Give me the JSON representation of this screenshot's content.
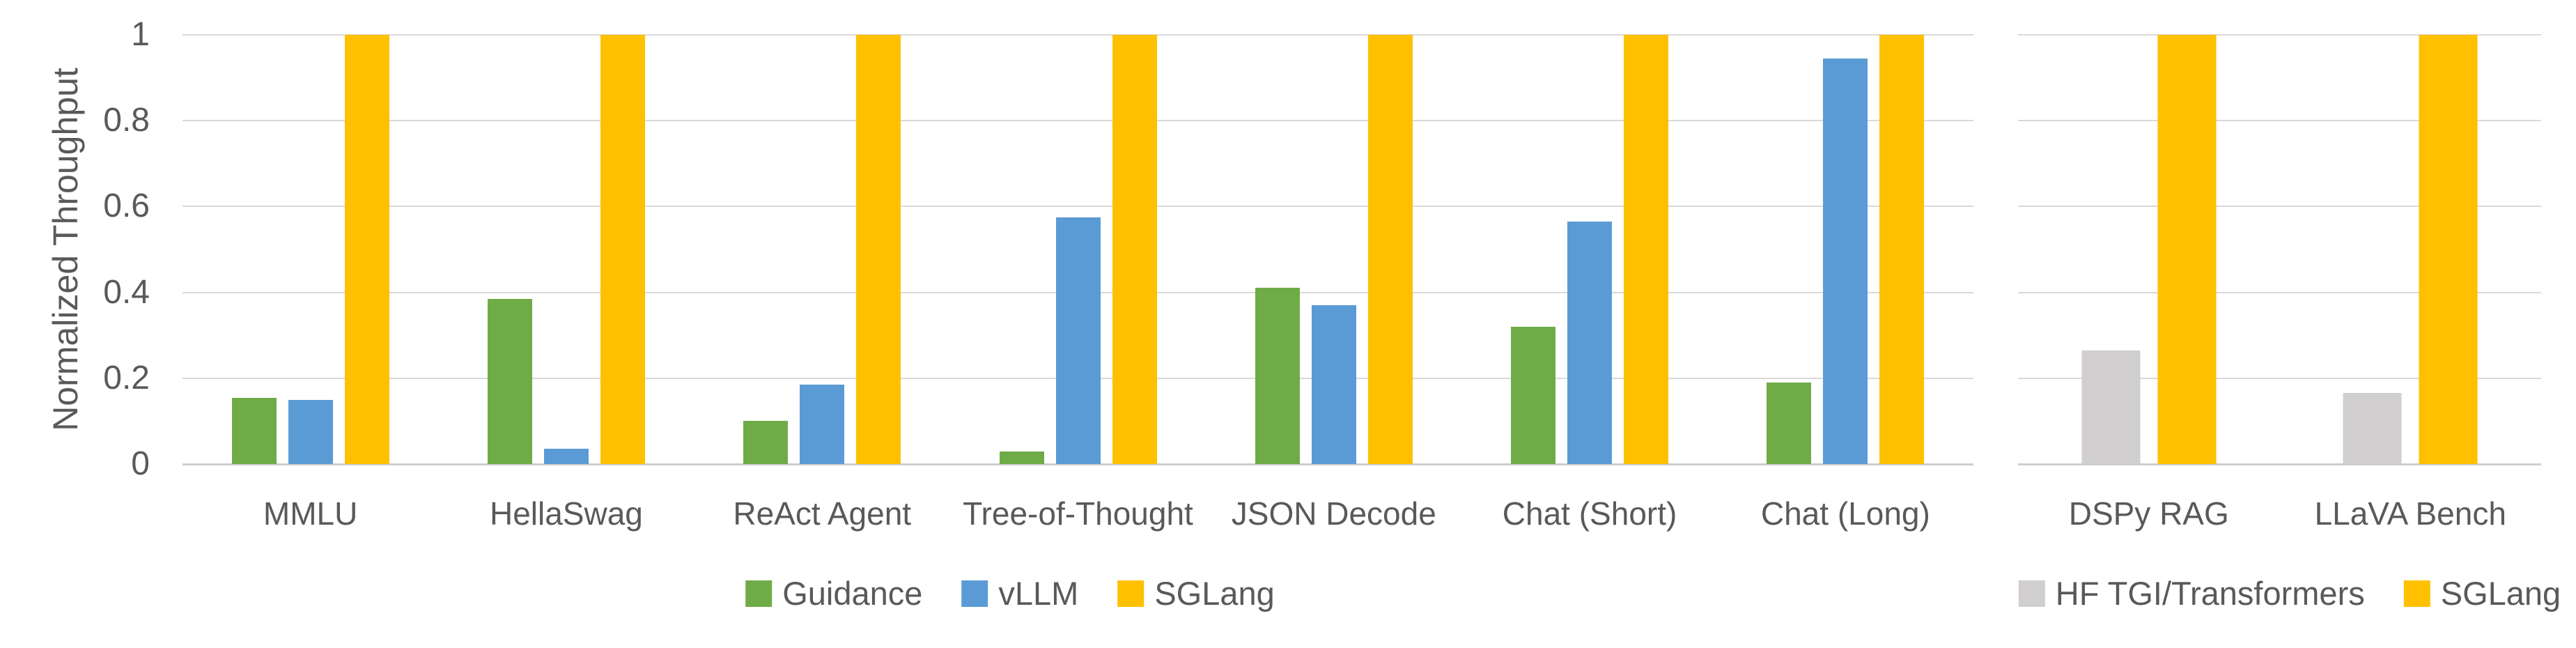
{
  "figure": {
    "ylabel": "Normalized Throughput",
    "ytick_labels": [
      "0",
      "0.2",
      "0.4",
      "0.6",
      "0.8",
      "1"
    ],
    "colors": {
      "guidance": "#6FAC47",
      "vllm": "#5B9BD5",
      "sglang": "#FFC000",
      "hf_tgi_transformers": "#D0CECE",
      "grid": "#D9D9D9",
      "text": "#595959"
    }
  },
  "chart_data": [
    {
      "type": "bar",
      "title": "",
      "xlabel": "",
      "ylabel": "Normalized Throughput",
      "ylim": [
        0,
        1
      ],
      "yticks": [
        0,
        0.2,
        0.4,
        0.6,
        0.8,
        1
      ],
      "grid": true,
      "legend_position": "bottom",
      "categories": [
        "MMLU",
        "HellaSwag",
        "ReAct Agent",
        "Tree-of-Thought",
        "JSON Decode",
        "Chat (Short)",
        "Chat (Long)"
      ],
      "series": [
        {
          "name": "Guidance",
          "color": "#6FAC47",
          "values": [
            0.155,
            0.385,
            0.1,
            0.03,
            0.41,
            0.32,
            0.19
          ]
        },
        {
          "name": "vLLM",
          "color": "#5B9BD5",
          "values": [
            0.15,
            0.035,
            0.185,
            0.575,
            0.37,
            0.565,
            0.945
          ]
        },
        {
          "name": "SGLang",
          "color": "#FFC000",
          "values": [
            1,
            1,
            1,
            1,
            1,
            1,
            1
          ]
        }
      ]
    },
    {
      "type": "bar",
      "title": "",
      "xlabel": "",
      "ylabel": "",
      "ylim": [
        0,
        1
      ],
      "yticks": [
        0,
        0.2,
        0.4,
        0.6,
        0.8,
        1
      ],
      "grid": true,
      "legend_position": "bottom",
      "categories": [
        "DSPy RAG",
        "LLaVA Bench"
      ],
      "series": [
        {
          "name": "HF TGI/Transformers",
          "color": "#D0CECE",
          "values": [
            0.265,
            0.165
          ]
        },
        {
          "name": "SGLang",
          "color": "#FFC000",
          "values": [
            1,
            1
          ]
        }
      ]
    }
  ]
}
